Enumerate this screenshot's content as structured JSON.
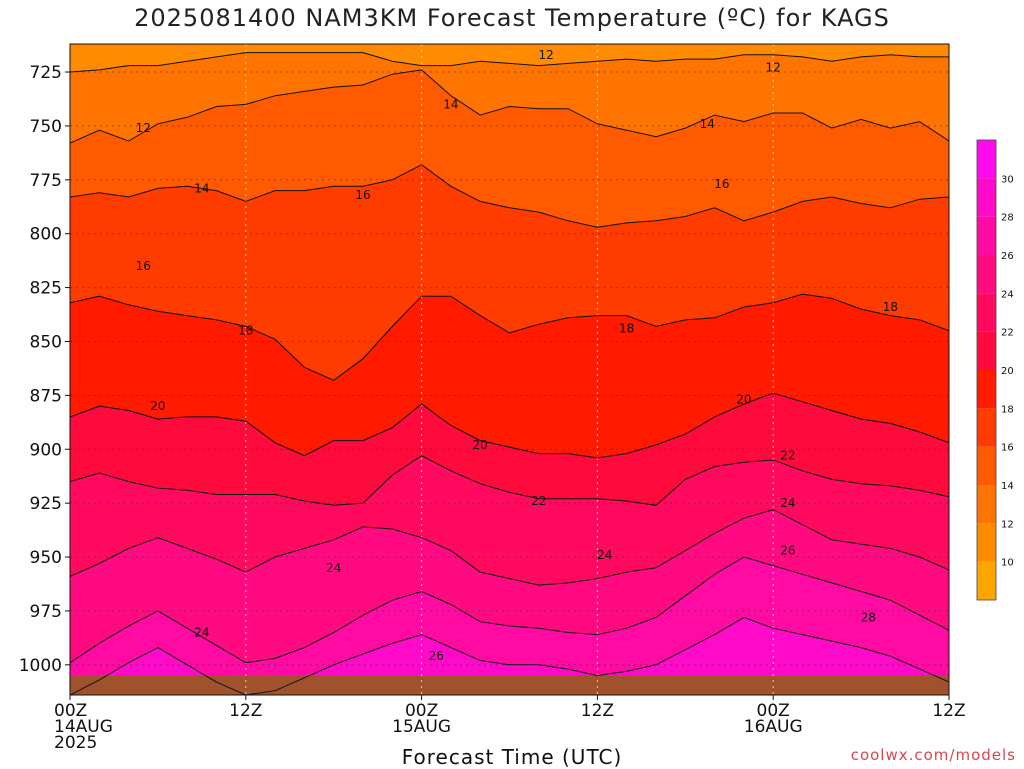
{
  "title": "2025081400 NAM3KM Forecast Temperature (ºC) for KAGS",
  "credit": "coolwx.com/models",
  "chart_data": {
    "type": "heatmap",
    "title": "2025081400 NAM3KM Forecast Temperature (ºC) for KAGS",
    "xlabel": "Forecast Time (UTC)",
    "ylabel": "",
    "x_range_hours": [
      0,
      60
    ],
    "y_range": [
      712,
      1014
    ],
    "y_inverted": true,
    "grid": true,
    "x_ticks": [
      {
        "hour": 0,
        "lines": [
          "00Z",
          "14AUG",
          "2025"
        ]
      },
      {
        "hour": 12,
        "lines": [
          "12Z"
        ]
      },
      {
        "hour": 24,
        "lines": [
          "00Z",
          "15AUG"
        ]
      },
      {
        "hour": 36,
        "lines": [
          "12Z"
        ]
      },
      {
        "hour": 48,
        "lines": [
          "00Z",
          "16AUG"
        ]
      },
      {
        "hour": 60,
        "lines": [
          "12Z"
        ]
      }
    ],
    "y_ticks": [
      725,
      750,
      775,
      800,
      825,
      850,
      875,
      900,
      925,
      950,
      975,
      1000
    ],
    "colorbar": {
      "ticks": [
        10,
        12,
        14,
        16,
        18,
        20,
        22,
        24,
        26,
        28,
        30
      ],
      "colors": [
        "#ffa500",
        "#ff8c00",
        "#ff7400",
        "#ff5a00",
        "#ff3c00",
        "#ff1a00",
        "#ff0a3c",
        "#ff0a5e",
        "#ff0a80",
        "#ff0aa2",
        "#ff0ac8",
        "#ff0aee"
      ]
    },
    "contours": [
      {
        "level": 12,
        "p": [
          725,
          724,
          722,
          722,
          720,
          718,
          716,
          716,
          716,
          716,
          716,
          720,
          722,
          722,
          720,
          721,
          722,
          721,
          720,
          719,
          720,
          719,
          719,
          717,
          717,
          718,
          720,
          718,
          717,
          718,
          718
        ]
      },
      {
        "level": 14,
        "p": [
          758,
          752,
          757,
          749,
          746,
          741,
          740,
          736,
          734,
          732,
          731,
          726,
          724,
          736,
          745,
          741,
          742,
          742,
          749,
          752,
          755,
          751,
          745,
          748,
          744,
          744,
          751,
          747,
          751,
          748,
          757
        ]
      },
      {
        "level": 16,
        "p": [
          783,
          781,
          783,
          779,
          778,
          780,
          785,
          780,
          780,
          778,
          778,
          775,
          768,
          778,
          785,
          788,
          790,
          794,
          797,
          795,
          794,
          792,
          788,
          794,
          790,
          785,
          783,
          786,
          788,
          784,
          783
        ]
      },
      {
        "level": 18,
        "p": [
          832,
          829,
          833,
          836,
          838,
          840,
          843,
          849,
          862,
          868,
          858,
          843,
          829,
          829,
          838,
          846,
          842,
          839,
          838,
          838,
          843,
          840,
          839,
          834,
          832,
          828,
          830,
          835,
          838,
          840,
          845
        ]
      },
      {
        "level": 20,
        "p": [
          885,
          880,
          882,
          886,
          885,
          885,
          887,
          897,
          903,
          896,
          896,
          890,
          879,
          889,
          896,
          899,
          902,
          902,
          904,
          902,
          898,
          893,
          885,
          879,
          874,
          878,
          882,
          886,
          888,
          892,
          897
        ]
      },
      {
        "level": 22,
        "p": [
          915,
          911,
          915,
          918,
          919,
          921,
          921,
          921,
          924,
          926,
          925,
          912,
          903,
          910,
          916,
          920,
          923,
          923,
          923,
          924,
          926,
          914,
          908,
          906,
          905,
          910,
          914,
          916,
          917,
          919,
          922
        ]
      },
      {
        "level": 24,
        "p": [
          959,
          953,
          946,
          941,
          946,
          951,
          957,
          950,
          946,
          942,
          936,
          937,
          941,
          947,
          957,
          960,
          963,
          962,
          960,
          957,
          955,
          947,
          939,
          932,
          928,
          935,
          942,
          944,
          946,
          950,
          956
        ]
      },
      {
        "level": 26,
        "p": [
          999,
          990,
          982,
          975,
          983,
          991,
          999,
          997,
          992,
          985,
          977,
          970,
          966,
          972,
          980,
          982,
          983,
          985,
          986,
          983,
          978,
          968,
          958,
          950,
          954,
          958,
          962,
          966,
          970,
          977,
          984
        ]
      },
      {
        "level": 28,
        "p": [
          1014,
          1007,
          999,
          992,
          1000,
          1008,
          1014,
          1012,
          1006,
          1000,
          995,
          990,
          986,
          992,
          998,
          1000,
          1000,
          1002,
          1005,
          1003,
          1000,
          993,
          986,
          978,
          983,
          986,
          989,
          992,
          996,
          1002,
          1008
        ]
      }
    ],
    "contour_labels": [
      {
        "text": "12",
        "hour": 32.5,
        "p": 717
      },
      {
        "text": "12",
        "hour": 48.0,
        "p": 723
      },
      {
        "text": "12",
        "hour": 5.0,
        "p": 751
      },
      {
        "text": "14",
        "hour": 26.0,
        "p": 740
      },
      {
        "text": "14",
        "hour": 43.5,
        "p": 749
      },
      {
        "text": "14",
        "hour": 9.0,
        "p": 779
      },
      {
        "text": "16",
        "hour": 20.0,
        "p": 782
      },
      {
        "text": "16",
        "hour": 44.5,
        "p": 777
      },
      {
        "text": "16",
        "hour": 5.0,
        "p": 815
      },
      {
        "text": "18",
        "hour": 12.0,
        "p": 845
      },
      {
        "text": "18",
        "hour": 38.0,
        "p": 844
      },
      {
        "text": "18",
        "hour": 56.0,
        "p": 834
      },
      {
        "text": "20",
        "hour": 6.0,
        "p": 880
      },
      {
        "text": "20",
        "hour": 28.0,
        "p": 898
      },
      {
        "text": "20",
        "hour": 46.0,
        "p": 877
      },
      {
        "text": "22",
        "hour": 32.0,
        "p": 924
      },
      {
        "text": "22",
        "hour": 49.0,
        "p": 903
      },
      {
        "text": "24",
        "hour": 18.0,
        "p": 955
      },
      {
        "text": "24",
        "hour": 36.5,
        "p": 949
      },
      {
        "text": "24",
        "hour": 49.0,
        "p": 925
      },
      {
        "text": "24",
        "hour": 9.0,
        "p": 985
      },
      {
        "text": "26",
        "hour": 25.0,
        "p": 996
      },
      {
        "text": "26",
        "hour": 49.0,
        "p": 947
      },
      {
        "text": "28",
        "hour": 54.5,
        "p": 978
      }
    ],
    "ground_pressure": 1005
  }
}
